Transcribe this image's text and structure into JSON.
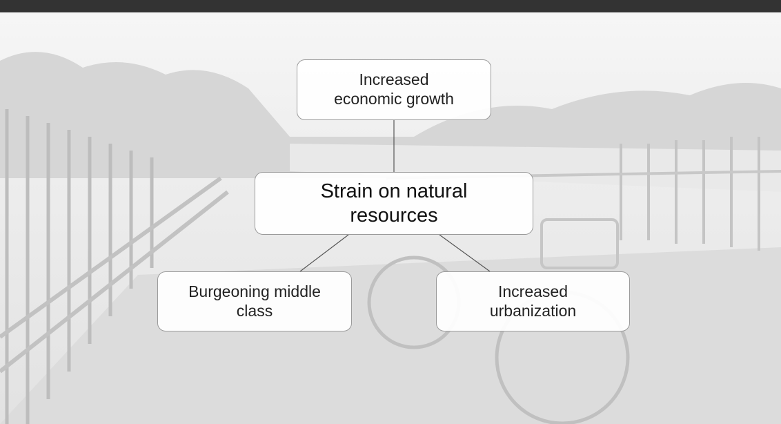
{
  "nodes": [
    {
      "lines": [
        "Increased",
        "economic growth"
      ]
    },
    {
      "lines": [
        "Strain on natural",
        "resources"
      ]
    },
    {
      "lines": [
        "Burgeoning middle",
        "class"
      ]
    },
    {
      "lines": [
        "Increased",
        "urbanization"
      ]
    }
  ]
}
